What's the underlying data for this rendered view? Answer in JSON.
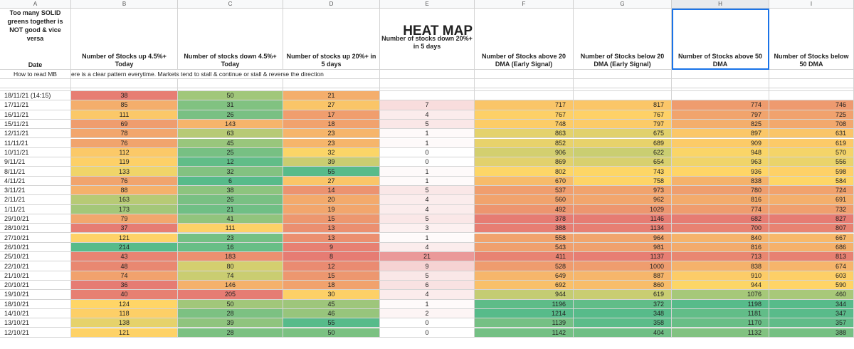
{
  "columns": [
    "A",
    "B",
    "C",
    "D",
    "E",
    "F",
    "G",
    "H",
    "I"
  ],
  "header": {
    "note": "Too many SOLID greens together is NOT good & vice versa",
    "date_label": "Date",
    "heat_map_title": "HEAT MAP",
    "col_b": "Number of Stocks up 4.5%+ Today",
    "col_c": "Number of stocks down 4.5%+ Today",
    "col_d": "Number of stocks up 20%+ in 5 days",
    "col_e": "Number of stocks down 20%+ in 5 days",
    "col_f": "Number of Stocks above 20 DMA (Early Signal)",
    "col_g": "Number of Stocks below 20 DMA (Early Signal)",
    "col_h": "Number of Stocks above 50 DMA",
    "col_i": "Number of Stocks below 50 DMA"
  },
  "how_to": {
    "label": "How to read MB",
    "text": "ere is a clear pattern everytime. Markets tend to stall & continue or stall & reverse the direction"
  },
  "rows": [
    {
      "date": "18/11/21 (14:15)",
      "b": "38",
      "c": "50",
      "d": "21",
      "e": "",
      "f": "",
      "g": "",
      "h": "",
      "i": ""
    },
    {
      "date": "17/11/21",
      "b": "85",
      "c": "31",
      "d": "27",
      "e": "7",
      "f": "717",
      "g": "817",
      "h": "774",
      "i": "746"
    },
    {
      "date": "16/11/21",
      "b": "111",
      "c": "26",
      "d": "17",
      "e": "4",
      "f": "767",
      "g": "767",
      "h": "797",
      "i": "725"
    },
    {
      "date": "15/11/21",
      "b": "69",
      "c": "143",
      "d": "18",
      "e": "5",
      "f": "748",
      "g": "797",
      "h": "825",
      "i": "708"
    },
    {
      "date": "12/11/21",
      "b": "78",
      "c": "63",
      "d": "23",
      "e": "1",
      "f": "863",
      "g": "675",
      "h": "897",
      "i": "631"
    },
    {
      "date": "11/11/21",
      "b": "76",
      "c": "45",
      "d": "23",
      "e": "1",
      "f": "852",
      "g": "689",
      "h": "909",
      "i": "619"
    },
    {
      "date": "10/11/21",
      "b": "112",
      "c": "25",
      "d": "32",
      "e": "0",
      "f": "906",
      "g": "622",
      "h": "948",
      "i": "570"
    },
    {
      "date": "9/11/21",
      "b": "119",
      "c": "12",
      "d": "39",
      "e": "0",
      "f": "869",
      "g": "654",
      "h": "963",
      "i": "556"
    },
    {
      "date": "8/11/21",
      "b": "133",
      "c": "32",
      "d": "55",
      "e": "1",
      "f": "802",
      "g": "743",
      "h": "936",
      "i": "598"
    },
    {
      "date": "4/11/21",
      "b": "76",
      "c": "6",
      "d": "27",
      "e": "1",
      "f": "670",
      "g": "758",
      "h": "838",
      "i": "584"
    },
    {
      "date": "3/11/21",
      "b": "88",
      "c": "38",
      "d": "14",
      "e": "5",
      "f": "537",
      "g": "973",
      "h": "780",
      "i": "724"
    },
    {
      "date": "2/11/21",
      "b": "163",
      "c": "26",
      "d": "20",
      "e": "4",
      "f": "560",
      "g": "962",
      "h": "816",
      "i": "691"
    },
    {
      "date": "1/11/21",
      "b": "173",
      "c": "21",
      "d": "19",
      "e": "4",
      "f": "492",
      "g": "1029",
      "h": "774",
      "i": "732"
    },
    {
      "date": "29/10/21",
      "b": "79",
      "c": "41",
      "d": "15",
      "e": "5",
      "f": "378",
      "g": "1146",
      "h": "682",
      "i": "827"
    },
    {
      "date": "28/10/21",
      "b": "37",
      "c": "111",
      "d": "13",
      "e": "3",
      "f": "388",
      "g": "1134",
      "h": "700",
      "i": "807"
    },
    {
      "date": "27/10/21",
      "b": "121",
      "c": "23",
      "d": "13",
      "e": "1",
      "f": "558",
      "g": "964",
      "h": "840",
      "i": "667"
    },
    {
      "date": "26/10/21",
      "b": "214",
      "c": "16",
      "d": "9",
      "e": "4",
      "f": "543",
      "g": "981",
      "h": "816",
      "i": "686"
    },
    {
      "date": "25/10/21",
      "b": "43",
      "c": "183",
      "d": "8",
      "e": "21",
      "f": "411",
      "g": "1137",
      "h": "713",
      "i": "813"
    },
    {
      "date": "22/10/21",
      "b": "48",
      "c": "80",
      "d": "12",
      "e": "9",
      "f": "528",
      "g": "1000",
      "h": "838",
      "i": "674"
    },
    {
      "date": "21/10/21",
      "b": "74",
      "c": "74",
      "d": "15",
      "e": "5",
      "f": "649",
      "g": "887",
      "h": "910",
      "i": "603"
    },
    {
      "date": "20/10/21",
      "b": "36",
      "c": "146",
      "d": "18",
      "e": "6",
      "f": "692",
      "g": "860",
      "h": "944",
      "i": "590"
    },
    {
      "date": "19/10/21",
      "b": "40",
      "c": "205",
      "d": "30",
      "e": "4",
      "f": "944",
      "g": "619",
      "h": "1076",
      "i": "460"
    },
    {
      "date": "18/10/21",
      "b": "124",
      "c": "50",
      "d": "45",
      "e": "1",
      "f": "1196",
      "g": "372",
      "h": "1198",
      "i": "344"
    },
    {
      "date": "14/10/21",
      "b": "118",
      "c": "28",
      "d": "46",
      "e": "2",
      "f": "1214",
      "g": "348",
      "h": "1181",
      "i": "347"
    },
    {
      "date": "13/10/21",
      "b": "138",
      "c": "39",
      "d": "55",
      "e": "0",
      "f": "1139",
      "g": "358",
      "h": "1170",
      "i": "357"
    },
    {
      "date": "12/10/21",
      "b": "121",
      "c": "28",
      "d": "50",
      "e": "0",
      "f": "1142",
      "g": "404",
      "h": "1132",
      "i": "388"
    }
  ],
  "colors": {
    "red": "#e67c73",
    "yellow": "#ffd666",
    "green": "#57bb8a",
    "selection": "#1a73e8",
    "grid": "#d4d4d4"
  }
}
